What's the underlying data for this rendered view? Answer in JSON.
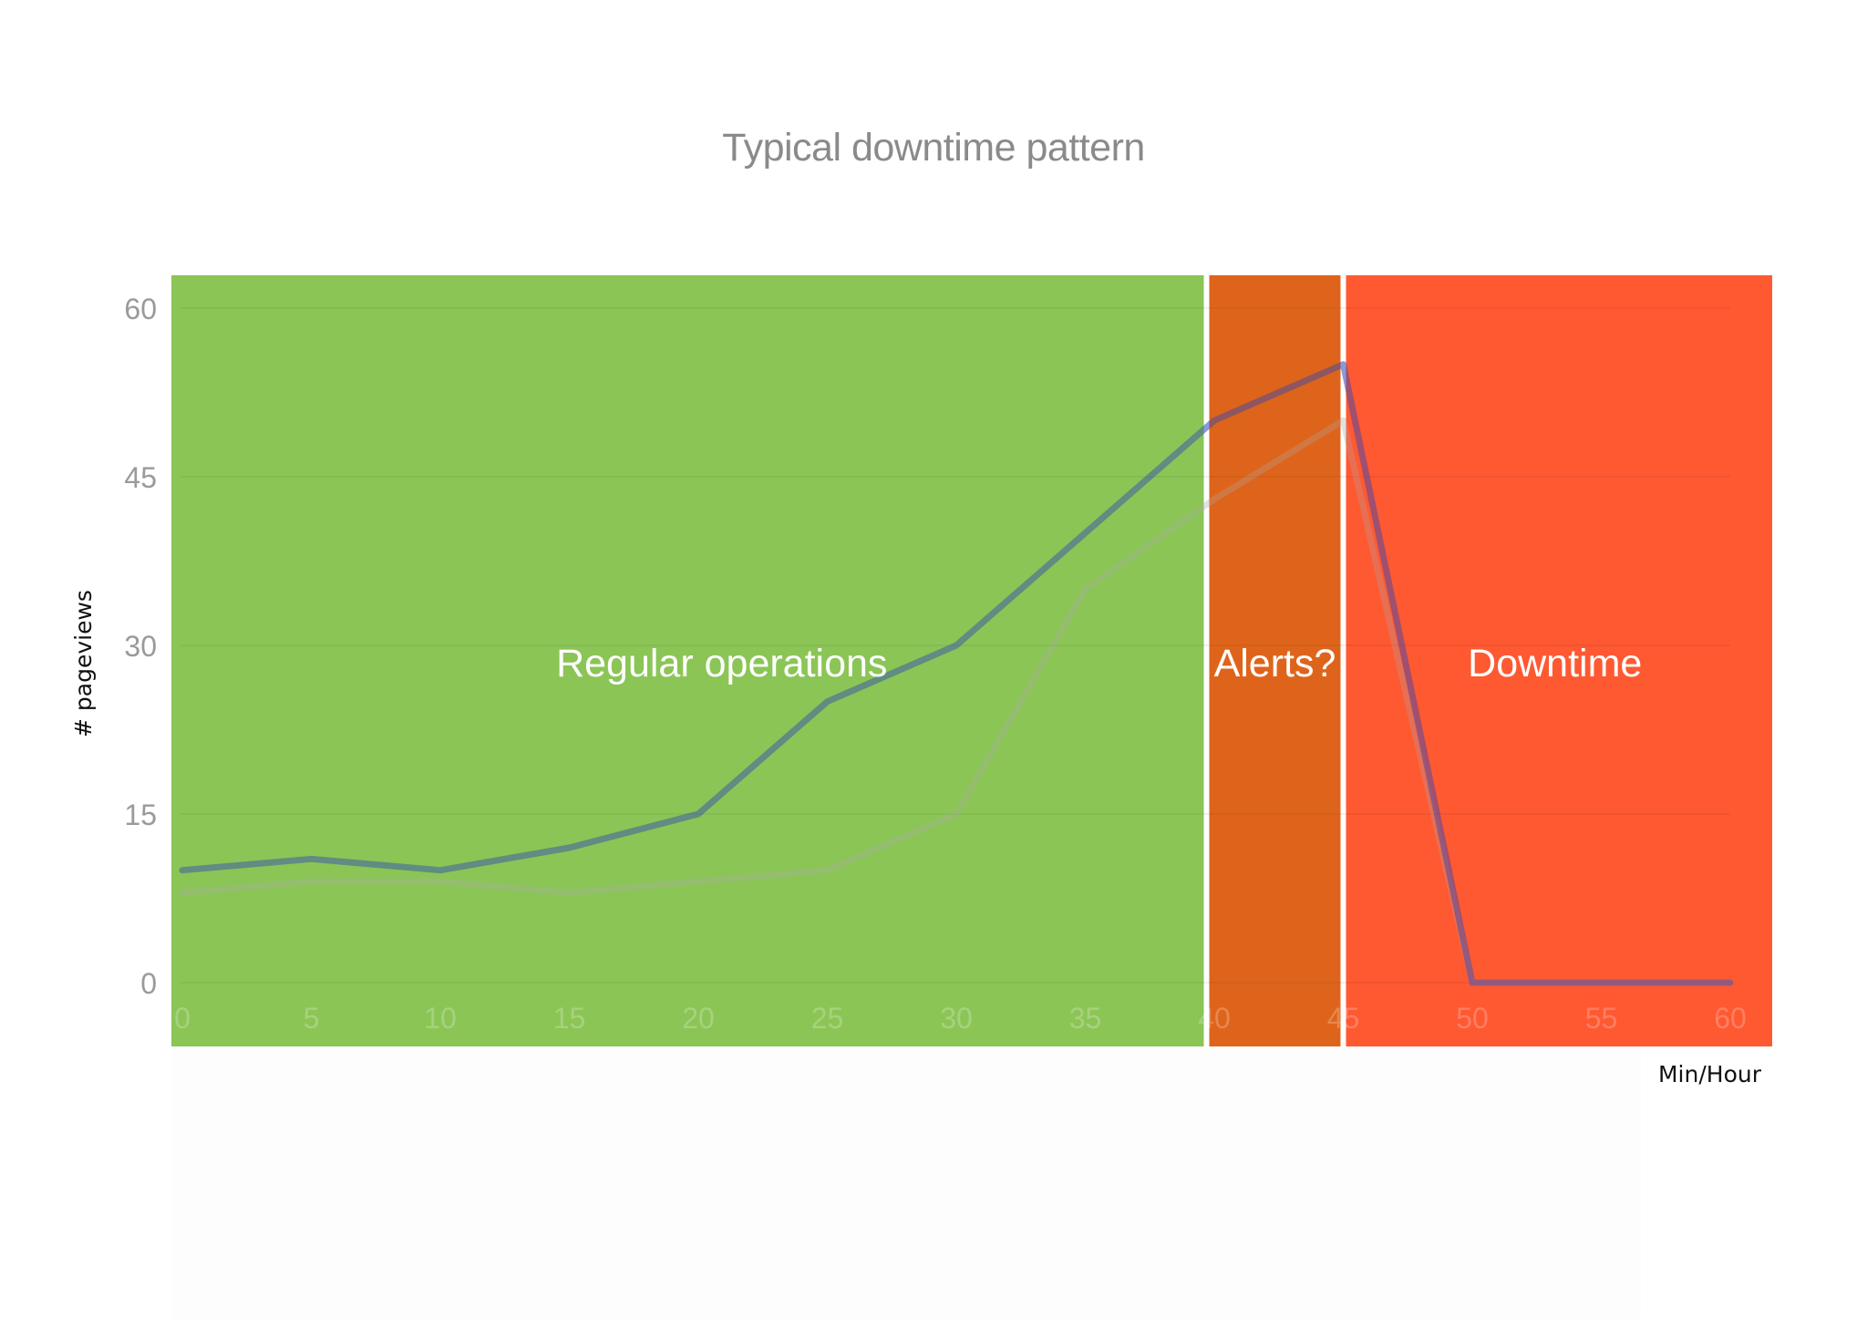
{
  "chart_data": {
    "type": "line",
    "title": "Typical downtime pattern",
    "xlabel": "Min/Hour",
    "ylabel": "# pageviews",
    "x": [
      0,
      5,
      10,
      15,
      20,
      25,
      30,
      35,
      40,
      45,
      50,
      55,
      60
    ],
    "xlim": [
      0,
      60
    ],
    "ylim": [
      0,
      60
    ],
    "x_ticks": [
      "0",
      "5",
      "10",
      "15",
      "20",
      "25",
      "30",
      "35",
      "40",
      "45",
      "50",
      "55",
      "60"
    ],
    "y_ticks": [
      "0",
      "15",
      "30",
      "45",
      "60"
    ],
    "grid": true,
    "series": [
      {
        "values": [
          10,
          11,
          10,
          12,
          15,
          25,
          30,
          40,
          50,
          55,
          0,
          0,
          0
        ],
        "color": "#2b45b8"
      },
      {
        "values": [
          8,
          9,
          9,
          8,
          9,
          10,
          15,
          35,
          43,
          50,
          0,
          0,
          0
        ],
        "color": "#a8a8a8"
      }
    ],
    "regions": [
      {
        "label": "Regular operations",
        "x_start": 0,
        "x_end": 39.7,
        "color": "#8cc556"
      },
      {
        "label": "Alerts?",
        "x_start": 39.7,
        "x_end": 45,
        "color": "#e0651b"
      },
      {
        "label": "Downtime",
        "x_start": 45,
        "x_end": 60,
        "color": "#ff5a33"
      }
    ]
  },
  "colors": {
    "title": "#8a8a8a",
    "tick_labels": "#9a9a9a",
    "gridline": "#e6e6e6"
  }
}
